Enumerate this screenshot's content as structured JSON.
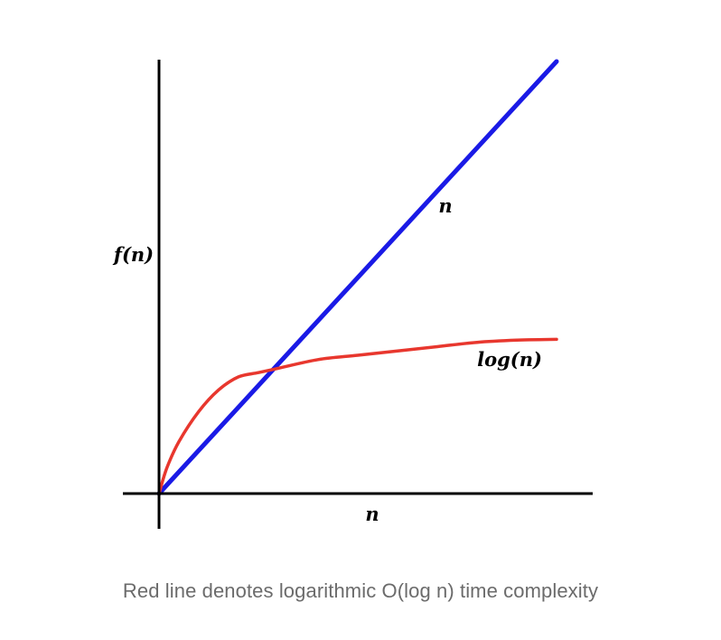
{
  "chart_data": {
    "type": "line",
    "ylabel": "f(n)",
    "xlabel": "n",
    "grid": false,
    "legend": "none",
    "series": [
      {
        "name": "n",
        "label": "n",
        "color": "#1a1ae6",
        "x": [
          0,
          1
        ],
        "values": [
          0,
          1
        ]
      },
      {
        "name": "log(n)",
        "label": "log(n)",
        "color": "#e8372e",
        "x": [
          0,
          0.02,
          0.05,
          0.1,
          0.15,
          0.2,
          0.25,
          0.3,
          0.4,
          0.5,
          0.6,
          0.7,
          0.8,
          0.9,
          1.0
        ],
        "values": [
          0,
          0.06,
          0.12,
          0.19,
          0.24,
          0.27,
          0.28,
          0.29,
          0.31,
          0.32,
          0.33,
          0.34,
          0.35,
          0.355,
          0.357
        ]
      }
    ]
  },
  "caption": "Red line denotes logarithmic O(log n) time complexity"
}
